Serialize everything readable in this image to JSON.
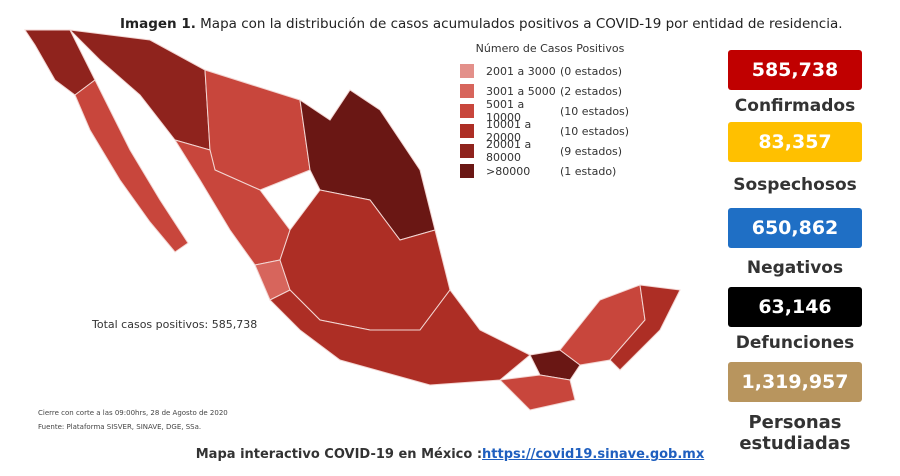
{
  "caption": {
    "label": "Imagen 1.",
    "text": "Mapa con la distribución de casos acumulados positivos a COVID-19 por entidad de residencia."
  },
  "legend": {
    "title": "Número de Casos Positivos",
    "items": [
      {
        "range": "2001 a   3000",
        "count": "(0 estados)",
        "color": "#e3908a"
      },
      {
        "range": "3001 a   5000",
        "count": "(2 estados)",
        "color": "#d7655c"
      },
      {
        "range": "5001 a 10000",
        "count": "(10 estados)",
        "color": "#c8463c"
      },
      {
        "range": "10001 a 20000",
        "count": "(10 estados)",
        "color": "#ad2e25"
      },
      {
        "range": "20001 a 80000",
        "count": "(9 estados)",
        "color": "#8f231d"
      },
      {
        "range": ">80000",
        "count": "(1 estado)",
        "color": "#6a1714"
      }
    ]
  },
  "stats": [
    {
      "value": "585,738",
      "label": "Confirmados",
      "color": "#c00000"
    },
    {
      "value": "83,357",
      "label": "Sospechosos",
      "color": "#ffc000"
    },
    {
      "value": "650,862",
      "label": "Negativos",
      "color": "#1f6fc5"
    },
    {
      "value": "63,146",
      "label": "Defunciones",
      "color": "#000000"
    },
    {
      "value": "1,319,957",
      "label": "Personas estudiadas",
      "color": "#b8955e"
    }
  ],
  "total": "Total casos positivos: 585,738",
  "footnotes": [
    "Cierre con corte a las 09:00hrs, 28 de Agosto de 2020",
    "Fuente: Plataforma SISVER, SINAVE, DGE, SSa."
  ],
  "bottom": {
    "text": "Mapa interactivo COVID-19 en México :",
    "link": "https://covid19.sinave.gob.mx"
  }
}
